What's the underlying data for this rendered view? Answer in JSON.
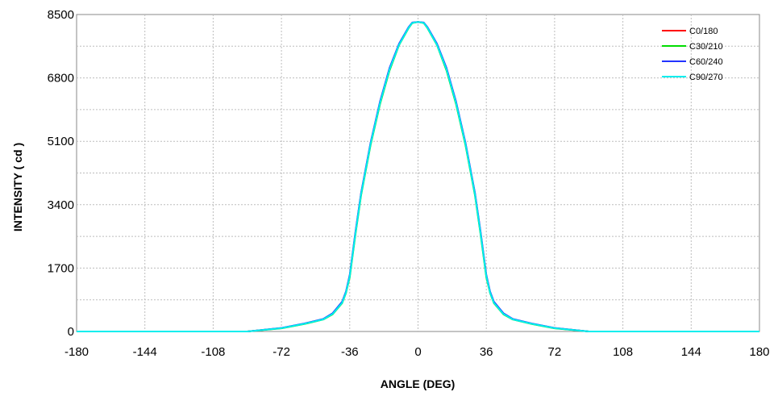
{
  "chart_data": {
    "type": "line",
    "title": "",
    "xlabel": "ANGLE (DEG)",
    "ylabel": "INTENSITY ( cd )",
    "xlim": [
      -180,
      180
    ],
    "ylim": [
      0,
      8500
    ],
    "xticks": [
      -180,
      -144,
      -108,
      -72,
      -36,
      0,
      36,
      72,
      108,
      144,
      180
    ],
    "xtick_labels": [
      "-180",
      "-144",
      "-108",
      "-72",
      "-36",
      "0",
      "36",
      "72",
      "108",
      "144",
      "180"
    ],
    "yticks": [
      0,
      1700,
      3400,
      5100,
      6800,
      8500
    ],
    "ytick_labels": [
      "0",
      "1700",
      "3400",
      "5100",
      "6800",
      "8500"
    ],
    "grid": true,
    "legend_position": "top-right",
    "x": [
      -180,
      -170,
      -90,
      -72,
      -60,
      -50,
      -45,
      -40,
      -38,
      -36,
      -33,
      -30,
      -25,
      -20,
      -15,
      -10,
      -5,
      -3,
      0,
      3,
      5,
      10,
      15,
      20,
      25,
      30,
      33,
      36,
      38,
      40,
      45,
      50,
      60,
      72,
      90,
      170,
      180
    ],
    "series": [
      {
        "name": "C0/180",
        "color": "#ff0000",
        "values": [
          0,
          0,
          0,
          90,
          210,
          330,
          480,
          780,
          1050,
          1500,
          2650,
          3700,
          5050,
          6150,
          7050,
          7700,
          8150,
          8280,
          8300,
          8280,
          8150,
          7700,
          7050,
          6150,
          5050,
          3700,
          2650,
          1500,
          1050,
          780,
          480,
          330,
          210,
          90,
          0,
          0,
          0
        ]
      },
      {
        "name": "C30/210",
        "color": "#00dd00",
        "values": [
          0,
          0,
          0,
          85,
          200,
          320,
          460,
          760,
          1030,
          1450,
          2600,
          3650,
          5000,
          6100,
          7000,
          7680,
          8130,
          8270,
          8300,
          8270,
          8130,
          7680,
          7000,
          6100,
          5000,
          3650,
          2600,
          1450,
          1030,
          760,
          460,
          320,
          200,
          85,
          0,
          0,
          0
        ]
      },
      {
        "name": "C60/240",
        "color": "#2233ff",
        "values": [
          0,
          0,
          0,
          95,
          215,
          335,
          490,
          800,
          1070,
          1520,
          2680,
          3720,
          5070,
          6170,
          7070,
          7720,
          8160,
          8285,
          8300,
          8285,
          8160,
          7720,
          7070,
          6170,
          5070,
          3720,
          2680,
          1520,
          1070,
          800,
          490,
          335,
          215,
          95,
          0,
          0,
          0
        ]
      },
      {
        "name": "C90/270",
        "color": "#00eeee",
        "values": [
          0,
          0,
          0,
          88,
          205,
          325,
          470,
          770,
          1040,
          1480,
          2630,
          3680,
          5030,
          6130,
          7030,
          7690,
          8140,
          8275,
          8300,
          8275,
          8140,
          7690,
          7030,
          6130,
          5030,
          3680,
          2630,
          1480,
          1040,
          770,
          470,
          325,
          205,
          88,
          0,
          0,
          0
        ]
      }
    ]
  }
}
